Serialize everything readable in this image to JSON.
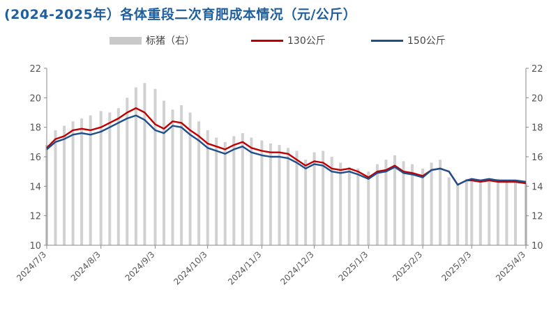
{
  "chart_data": {
    "type": "line",
    "title": "(2024-2025年）各体重段二次育肥成本情况（元/公斤）",
    "legend": [
      "标猪（右）",
      "130公斤",
      "150公斤"
    ],
    "legend_placement": "top",
    "x_labels": [
      "2024/7/3",
      "2024/8/3",
      "2024/9/3",
      "2024/10/3",
      "2024/11/3",
      "2024/12/3",
      "2025/1/3",
      "2025/2/3",
      "2025/3/3",
      "2025/4/3"
    ],
    "y_left": {
      "min": 10,
      "max": 22,
      "ticks": [
        10,
        12,
        14,
        16,
        18,
        20,
        22
      ]
    },
    "y_right": {
      "min": 10,
      "max": 22,
      "ticks": [
        10,
        12,
        14,
        16,
        18,
        20,
        22
      ]
    },
    "series": [
      {
        "name": "标猪（右）",
        "kind": "bar",
        "axis": "right",
        "color": "#c9c9c9",
        "points": [
          [
            "2024/7/3",
            16.8
          ],
          [
            "2024/7/8",
            17.8
          ],
          [
            "2024/7/13",
            18.1
          ],
          [
            "2024/7/18",
            18.4
          ],
          [
            "2024/7/23",
            18.6
          ],
          [
            "2024/7/28",
            18.8
          ],
          [
            "2024/8/3",
            19.1
          ],
          [
            "2024/8/8",
            19.0
          ],
          [
            "2024/8/13",
            19.3
          ],
          [
            "2024/8/18",
            20.0
          ],
          [
            "2024/8/23",
            20.7
          ],
          [
            "2024/8/28",
            21.0
          ],
          [
            "2024/9/3",
            20.6
          ],
          [
            "2024/9/8",
            19.8
          ],
          [
            "2024/9/13",
            19.2
          ],
          [
            "2024/9/18",
            19.5
          ],
          [
            "2024/9/23",
            19.0
          ],
          [
            "2024/9/28",
            18.4
          ],
          [
            "2024/10/3",
            17.8
          ],
          [
            "2024/10/8",
            17.3
          ],
          [
            "2024/10/13",
            17.0
          ],
          [
            "2024/10/18",
            17.4
          ],
          [
            "2024/10/23",
            17.6
          ],
          [
            "2024/10/28",
            17.3
          ],
          [
            "2024/11/3",
            17.1
          ],
          [
            "2024/11/8",
            16.9
          ],
          [
            "2024/11/13",
            16.8
          ],
          [
            "2024/11/18",
            16.6
          ],
          [
            "2024/11/23",
            16.4
          ],
          [
            "2024/11/28",
            15.8
          ],
          [
            "2024/12/3",
            16.3
          ],
          [
            "2024/12/8",
            16.4
          ],
          [
            "2024/12/13",
            16.0
          ],
          [
            "2024/12/18",
            15.6
          ],
          [
            "2024/12/23",
            15.3
          ],
          [
            "2024/12/28",
            15.2
          ],
          [
            "2025/1/3",
            15.0
          ],
          [
            "2025/1/8",
            15.5
          ],
          [
            "2025/1/13",
            15.8
          ],
          [
            "2025/1/18",
            16.1
          ],
          [
            "2025/1/23",
            15.7
          ],
          [
            "2025/1/28",
            15.5
          ],
          [
            "2025/2/3",
            15.2
          ],
          [
            "2025/2/8",
            15.6
          ],
          [
            "2025/2/13",
            15.8
          ],
          [
            "2025/2/18",
            14.6
          ],
          [
            "2025/2/23",
            14.2
          ],
          [
            "2025/2/28",
            14.5
          ],
          [
            "2025/3/3",
            14.5
          ],
          [
            "2025/3/8",
            14.3
          ],
          [
            "2025/3/13",
            14.4
          ],
          [
            "2025/3/18",
            14.5
          ],
          [
            "2025/3/23",
            14.4
          ],
          [
            "2025/3/28",
            14.3
          ],
          [
            "2025/4/3",
            14.2
          ]
        ]
      },
      {
        "name": "130公斤",
        "kind": "line",
        "axis": "left",
        "color": "#c00000",
        "points": [
          [
            "2024/7/3",
            16.6
          ],
          [
            "2024/7/8",
            17.2
          ],
          [
            "2024/7/13",
            17.4
          ],
          [
            "2024/7/18",
            17.8
          ],
          [
            "2024/7/23",
            17.9
          ],
          [
            "2024/7/28",
            17.8
          ],
          [
            "2024/8/3",
            18.0
          ],
          [
            "2024/8/8",
            18.3
          ],
          [
            "2024/8/13",
            18.6
          ],
          [
            "2024/8/18",
            19.0
          ],
          [
            "2024/8/23",
            19.3
          ],
          [
            "2024/8/28",
            19.0
          ],
          [
            "2024/9/3",
            18.2
          ],
          [
            "2024/9/8",
            17.9
          ],
          [
            "2024/9/13",
            18.4
          ],
          [
            "2024/9/18",
            18.3
          ],
          [
            "2024/9/23",
            17.8
          ],
          [
            "2024/9/28",
            17.4
          ],
          [
            "2024/10/3",
            16.9
          ],
          [
            "2024/10/8",
            16.7
          ],
          [
            "2024/10/13",
            16.5
          ],
          [
            "2024/10/18",
            16.8
          ],
          [
            "2024/10/23",
            17.0
          ],
          [
            "2024/10/28",
            16.6
          ],
          [
            "2024/11/3",
            16.4
          ],
          [
            "2024/11/8",
            16.3
          ],
          [
            "2024/11/13",
            16.3
          ],
          [
            "2024/11/18",
            16.2
          ],
          [
            "2024/11/23",
            15.8
          ],
          [
            "2024/11/28",
            15.4
          ],
          [
            "2024/12/3",
            15.7
          ],
          [
            "2024/12/8",
            15.6
          ],
          [
            "2024/12/13",
            15.2
          ],
          [
            "2024/12/18",
            15.1
          ],
          [
            "2024/12/23",
            15.2
          ],
          [
            "2024/12/28",
            15.0
          ],
          [
            "2025/1/3",
            14.6
          ],
          [
            "2025/1/8",
            15.0
          ],
          [
            "2025/1/13",
            15.1
          ],
          [
            "2025/1/18",
            15.4
          ],
          [
            "2025/1/23",
            15.0
          ],
          [
            "2025/1/28",
            14.9
          ],
          [
            "2025/2/3",
            14.7
          ],
          [
            "2025/2/8",
            15.1
          ],
          [
            "2025/2/13",
            15.2
          ],
          [
            "2025/2/18",
            15.0
          ],
          [
            "2025/2/23",
            14.1
          ],
          [
            "2025/2/28",
            14.4
          ],
          [
            "2025/3/3",
            14.4
          ],
          [
            "2025/3/8",
            14.3
          ],
          [
            "2025/3/13",
            14.4
          ],
          [
            "2025/3/18",
            14.3
          ],
          [
            "2025/3/23",
            14.3
          ],
          [
            "2025/3/28",
            14.3
          ],
          [
            "2025/4/3",
            14.2
          ]
        ]
      },
      {
        "name": "150公斤",
        "kind": "line",
        "axis": "left",
        "color": "#1f4e8c",
        "points": [
          [
            "2024/7/3",
            16.5
          ],
          [
            "2024/7/8",
            17.0
          ],
          [
            "2024/7/13",
            17.2
          ],
          [
            "2024/7/18",
            17.5
          ],
          [
            "2024/7/23",
            17.6
          ],
          [
            "2024/7/28",
            17.5
          ],
          [
            "2024/8/3",
            17.7
          ],
          [
            "2024/8/8",
            18.0
          ],
          [
            "2024/8/13",
            18.3
          ],
          [
            "2024/8/18",
            18.6
          ],
          [
            "2024/8/23",
            18.8
          ],
          [
            "2024/8/28",
            18.5
          ],
          [
            "2024/9/3",
            17.8
          ],
          [
            "2024/9/8",
            17.6
          ],
          [
            "2024/9/13",
            18.1
          ],
          [
            "2024/9/18",
            18.0
          ],
          [
            "2024/9/23",
            17.5
          ],
          [
            "2024/9/28",
            17.1
          ],
          [
            "2024/10/3",
            16.6
          ],
          [
            "2024/10/8",
            16.4
          ],
          [
            "2024/10/13",
            16.2
          ],
          [
            "2024/10/18",
            16.5
          ],
          [
            "2024/10/23",
            16.7
          ],
          [
            "2024/10/28",
            16.3
          ],
          [
            "2024/11/3",
            16.1
          ],
          [
            "2024/11/8",
            16.0
          ],
          [
            "2024/11/13",
            16.0
          ],
          [
            "2024/11/18",
            15.9
          ],
          [
            "2024/11/23",
            15.6
          ],
          [
            "2024/11/28",
            15.2
          ],
          [
            "2024/12/3",
            15.5
          ],
          [
            "2024/12/8",
            15.4
          ],
          [
            "2024/12/13",
            15.0
          ],
          [
            "2024/12/18",
            14.9
          ],
          [
            "2024/12/23",
            15.0
          ],
          [
            "2024/12/28",
            14.8
          ],
          [
            "2025/1/3",
            14.5
          ],
          [
            "2025/1/8",
            14.9
          ],
          [
            "2025/1/13",
            15.0
          ],
          [
            "2025/1/18",
            15.3
          ],
          [
            "2025/1/23",
            14.9
          ],
          [
            "2025/1/28",
            14.8
          ],
          [
            "2025/2/3",
            14.6
          ],
          [
            "2025/2/8",
            15.1
          ],
          [
            "2025/2/13",
            15.2
          ],
          [
            "2025/2/18",
            15.0
          ],
          [
            "2025/2/23",
            14.1
          ],
          [
            "2025/2/28",
            14.4
          ],
          [
            "2025/3/3",
            14.5
          ],
          [
            "2025/3/8",
            14.4
          ],
          [
            "2025/3/13",
            14.5
          ],
          [
            "2025/3/18",
            14.4
          ],
          [
            "2025/3/23",
            14.4
          ],
          [
            "2025/3/28",
            14.4
          ],
          [
            "2025/4/3",
            14.3
          ]
        ]
      }
    ]
  }
}
